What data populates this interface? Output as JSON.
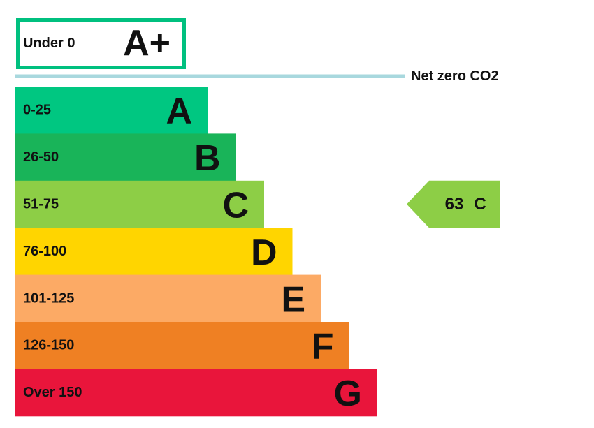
{
  "top_band": {
    "range": "Under 0",
    "letter": "A+",
    "color": "#00c07f"
  },
  "net_zero": {
    "label": "Net zero CO2",
    "color": "#a8d8de"
  },
  "bands": [
    {
      "range": "0-25",
      "letter": "A",
      "color": "#00c781"
    },
    {
      "range": "26-50",
      "letter": "B",
      "color": "#19b459"
    },
    {
      "range": "51-75",
      "letter": "C",
      "color": "#8dce46"
    },
    {
      "range": "76-100",
      "letter": "D",
      "color": "#ffd500"
    },
    {
      "range": "101-125",
      "letter": "E",
      "color": "#fcaa65"
    },
    {
      "range": "126-150",
      "letter": "F",
      "color": "#ef8023"
    },
    {
      "range": "Over 150",
      "letter": "G",
      "color": "#e9153b"
    }
  ],
  "current": {
    "score": 63,
    "letter": "C",
    "color": "#8dce46"
  }
}
